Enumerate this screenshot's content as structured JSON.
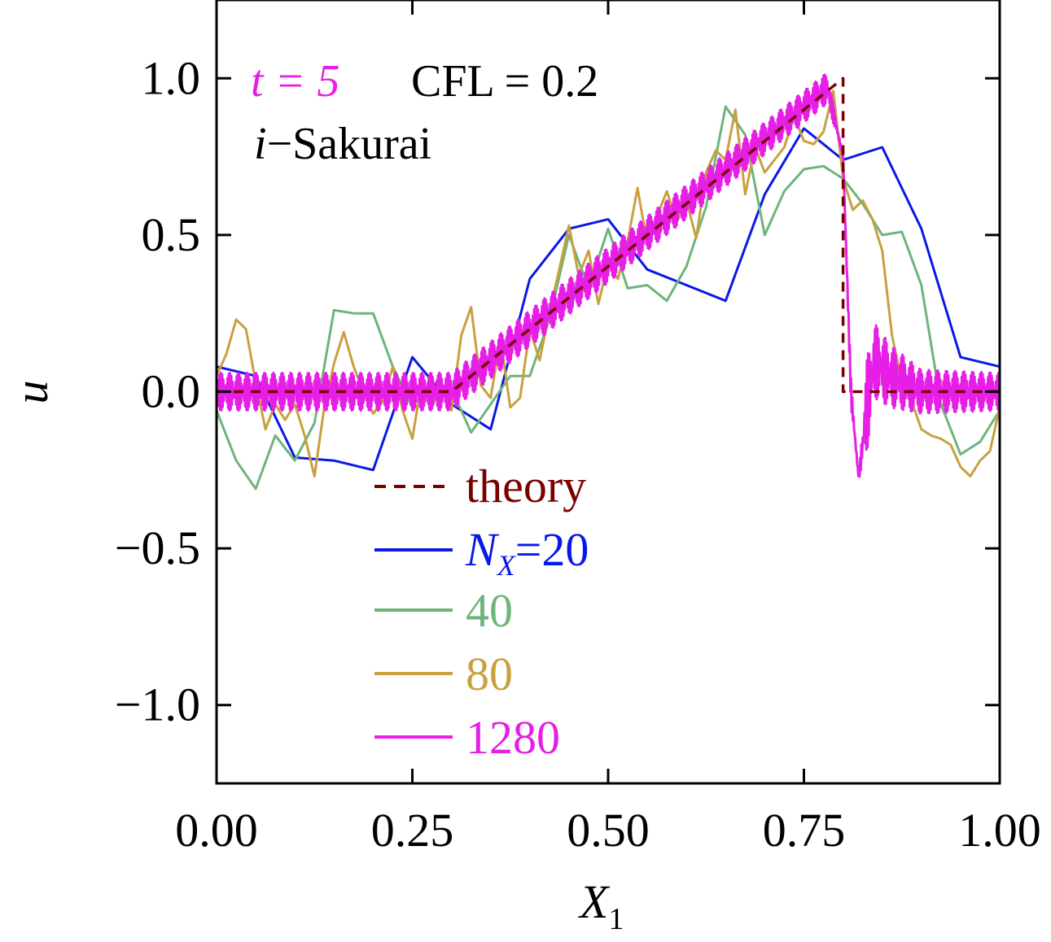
{
  "chart_data": {
    "type": "line",
    "xlabel": "X",
    "xlabel_sub": "1",
    "ylabel": "u",
    "xlim": [
      0.0,
      1.0
    ],
    "ylim": [
      -1.25,
      1.25
    ],
    "xticks": [
      "0.00",
      "0.25",
      "0.50",
      "0.75",
      "1.00"
    ],
    "xtick_values": [
      0.0,
      0.25,
      0.5,
      0.75,
      1.0
    ],
    "yticks": [
      "1.0",
      "0.5",
      "0.0",
      "−0.5",
      "−1.0"
    ],
    "ytick_values": [
      1.0,
      0.5,
      0.0,
      -0.5,
      -1.0
    ],
    "annotations": {
      "time_label": "t = 5",
      "cfl_label": "CFL = 0.2",
      "method_prefix": "i",
      "method_label": "−Sakurai"
    },
    "legend": {
      "placement": "lower-center",
      "entries": [
        {
          "label": "theory",
          "color": "#7a0000",
          "dashed": true
        },
        {
          "label_prefix": "N",
          "label_sub": "X",
          "label": "=20",
          "color": "#0a18e6"
        },
        {
          "label": "40",
          "color": "#6db57a"
        },
        {
          "label": "80",
          "color": "#c9a040"
        },
        {
          "label": "1280",
          "color": "#e61ee6"
        }
      ]
    },
    "series": [
      {
        "name": "theory",
        "color": "#7a0000",
        "dashed": true,
        "x": [
          0.0,
          0.3,
          0.8,
          0.8,
          1.0
        ],
        "y": [
          0.0,
          0.0,
          1.0,
          0.0,
          0.0
        ]
      },
      {
        "name": "20",
        "color": "#0a18e6",
        "x": [
          0.0,
          0.05,
          0.1,
          0.15,
          0.2,
          0.25,
          0.3,
          0.35,
          0.4,
          0.45,
          0.5,
          0.55,
          0.6,
          0.65,
          0.7,
          0.75,
          0.8,
          0.85,
          0.9,
          0.95,
          1.0
        ],
        "y": [
          0.08,
          0.05,
          -0.21,
          -0.22,
          -0.25,
          0.11,
          -0.04,
          -0.12,
          0.36,
          0.52,
          0.55,
          0.39,
          0.34,
          0.29,
          0.63,
          0.84,
          0.74,
          0.78,
          0.52,
          0.11,
          0.08
        ]
      },
      {
        "name": "40",
        "color": "#6db57a",
        "x": [
          0.0,
          0.025,
          0.05,
          0.075,
          0.1,
          0.125,
          0.15,
          0.175,
          0.2,
          0.225,
          0.25,
          0.275,
          0.3,
          0.325,
          0.35,
          0.375,
          0.4,
          0.425,
          0.45,
          0.475,
          0.5,
          0.525,
          0.55,
          0.575,
          0.6,
          0.625,
          0.65,
          0.675,
          0.7,
          0.725,
          0.75,
          0.775,
          0.8,
          0.825,
          0.85,
          0.875,
          0.9,
          0.925,
          0.95,
          0.975,
          1.0
        ],
        "y": [
          -0.06,
          -0.22,
          -0.31,
          -0.14,
          -0.22,
          -0.1,
          0.26,
          0.25,
          0.25,
          0.08,
          -0.05,
          -0.02,
          0.01,
          -0.13,
          -0.04,
          0.05,
          0.05,
          0.23,
          0.5,
          0.33,
          0.52,
          0.33,
          0.34,
          0.29,
          0.4,
          0.59,
          0.91,
          0.82,
          0.5,
          0.64,
          0.71,
          0.72,
          0.68,
          0.6,
          0.5,
          0.51,
          0.34,
          -0.04,
          -0.2,
          -0.16,
          -0.06
        ]
      },
      {
        "name": "80",
        "color": "#c9a040",
        "x": [
          0.0,
          0.0125,
          0.025,
          0.0375,
          0.05,
          0.0625,
          0.075,
          0.0875,
          0.1,
          0.1125,
          0.125,
          0.1375,
          0.15,
          0.1625,
          0.175,
          0.1875,
          0.2,
          0.2125,
          0.225,
          0.2375,
          0.25,
          0.2625,
          0.275,
          0.2875,
          0.3,
          0.3125,
          0.325,
          0.3375,
          0.35,
          0.3625,
          0.375,
          0.3875,
          0.4,
          0.4125,
          0.425,
          0.4375,
          0.45,
          0.4625,
          0.475,
          0.4875,
          0.5,
          0.5125,
          0.525,
          0.5375,
          0.55,
          0.5625,
          0.575,
          0.5875,
          0.6,
          0.6125,
          0.625,
          0.6375,
          0.65,
          0.6625,
          0.675,
          0.6875,
          0.7,
          0.7125,
          0.725,
          0.7375,
          0.75,
          0.7625,
          0.775,
          0.7875,
          0.8,
          0.8125,
          0.825,
          0.8375,
          0.85,
          0.8625,
          0.875,
          0.8875,
          0.9,
          0.9125,
          0.925,
          0.9375,
          0.95,
          0.9625,
          0.975,
          0.9875,
          1.0
        ],
        "y": [
          0.05,
          0.12,
          0.23,
          0.2,
          0.03,
          -0.12,
          -0.04,
          -0.09,
          -0.04,
          -0.14,
          -0.27,
          -0.05,
          0.09,
          0.19,
          0.08,
          0.0,
          -0.07,
          -0.03,
          0.08,
          -0.06,
          -0.15,
          0.04,
          -0.05,
          0.02,
          -0.06,
          0.18,
          0.27,
          0.02,
          -0.02,
          0.17,
          -0.05,
          -0.02,
          0.2,
          0.1,
          0.25,
          0.39,
          0.53,
          0.37,
          0.45,
          0.28,
          0.41,
          0.36,
          0.48,
          0.65,
          0.47,
          0.56,
          0.64,
          0.54,
          0.61,
          0.49,
          0.7,
          0.77,
          0.74,
          0.9,
          0.63,
          0.78,
          0.7,
          0.74,
          0.78,
          0.88,
          0.8,
          0.79,
          0.83,
          0.96,
          0.68,
          0.58,
          0.61,
          0.55,
          0.45,
          0.18,
          0.03,
          -0.03,
          -0.12,
          -0.14,
          -0.15,
          -0.17,
          -0.24,
          -0.27,
          -0.22,
          -0.19,
          -0.05
        ]
      },
      {
        "name": "1280",
        "color": "#e61ee6",
        "generated": "oscillatory high-resolution solution following the theory profile",
        "anchor_x": [
          0.0,
          0.3,
          0.78,
          0.8,
          0.81,
          0.82,
          0.83,
          0.84,
          0.86,
          0.9,
          1.0
        ],
        "anchor_y": [
          0.0,
          0.0,
          0.97,
          0.75,
          0.0,
          -0.28,
          -0.05,
          0.1,
          0.05,
          0.0,
          0.0
        ],
        "oscillation_amplitude": [
          0.06,
          0.06,
          0.05,
          0.0,
          0.05,
          0.0,
          0.15,
          0.12,
          0.1,
          0.07,
          0.06
        ]
      }
    ]
  }
}
